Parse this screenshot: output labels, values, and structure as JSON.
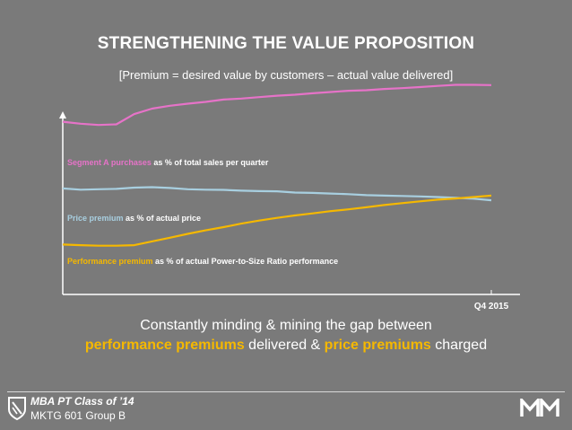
{
  "slide": {
    "title": "STRENGTHENING THE VALUE PROPOSITION",
    "subtitle": "[Premium = desired value  by customers – actual value delivered]",
    "caption_line1": "Constantly minding & mining the gap between",
    "caption_line2": {
      "part1": "performance premiums",
      "part2": " delivered & ",
      "part3": "price premiums",
      "part4": " charged"
    },
    "highlight_color": "#f5b800"
  },
  "footer": {
    "line1": "MBA PT Class of ’14",
    "line2": "MKTG 601 Group B",
    "left_logo_icon": "shield-logo-icon",
    "right_logo_icon": "mm-monogram-logo-icon"
  },
  "chart_data": {
    "type": "line",
    "xlabel": "",
    "ylabel": "",
    "x_tick_labels": [
      "Q4 2015"
    ],
    "xlim": [
      0,
      24
    ],
    "ylim": [
      0,
      100
    ],
    "grid": false,
    "x": [
      0,
      1,
      2,
      3,
      4,
      5,
      6,
      7,
      8,
      9,
      10,
      11,
      12,
      13,
      14,
      15,
      16,
      17,
      18,
      19,
      20,
      21,
      22,
      23,
      24
    ],
    "series": [
      {
        "name": "Segment A purchases",
        "label_rest": " as % of total sales per quarter",
        "color": "#e673c8",
        "values": [
          84.4,
          83.4,
          82.8,
          83.1,
          88.1,
          90.8,
          92.2,
          93.2,
          94.1,
          95.2,
          95.7,
          96.4,
          97.1,
          97.6,
          98.3,
          98.9,
          99.5,
          99.8,
          100.4,
          100.8,
          101.3,
          101.9,
          102.4,
          102.4,
          102.3
        ]
      },
      {
        "name": "Price premium",
        "label_rest": " as % of actual price",
        "color": "#a8cfe0",
        "values": [
          51.8,
          51.2,
          51.4,
          51.6,
          52.2,
          52.4,
          52.0,
          51.4,
          51.2,
          51.1,
          50.7,
          50.5,
          50.4,
          49.8,
          49.6,
          49.3,
          49.0,
          48.5,
          48.3,
          48.1,
          47.9,
          47.6,
          47.2,
          46.8,
          46.0
        ]
      },
      {
        "name": "Performance premium",
        "label_rest": " as % of actual Power-to-Size Ratio performance",
        "color": "#f5b800",
        "values": [
          24.4,
          24.1,
          23.8,
          23.8,
          24.1,
          25.9,
          27.7,
          29.6,
          31.3,
          32.9,
          34.6,
          36.1,
          37.4,
          38.6,
          39.6,
          40.7,
          41.6,
          42.6,
          43.7,
          44.6,
          45.5,
          46.3,
          46.9,
          47.6,
          48.3
        ]
      }
    ]
  }
}
